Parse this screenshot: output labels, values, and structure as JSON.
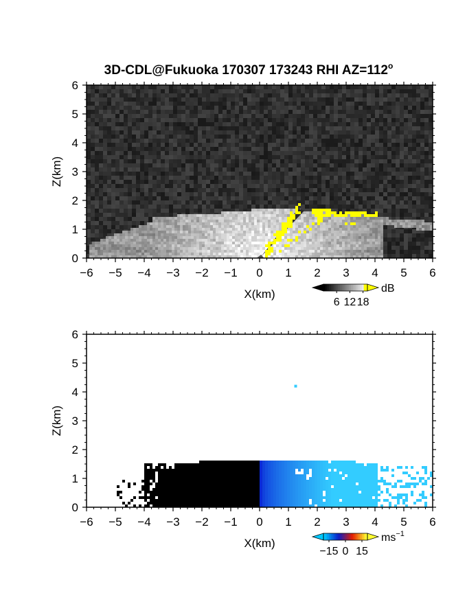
{
  "title": "3D-CDL@Fukuoka 170307 173243 RHI AZ=112",
  "title_superscript": "o",
  "chart_data": [
    {
      "type": "heatmap",
      "panel": "reflectivity",
      "xlabel": "X(km)",
      "ylabel": "Z(km)",
      "xlim": [
        -6,
        6
      ],
      "ylim": [
        0,
        6
      ],
      "xticks": [
        "-6",
        "-5",
        "-4",
        "-3",
        "-2",
        "-1",
        "0",
        "1",
        "2",
        "3",
        "4",
        "5",
        "6"
      ],
      "yticks": [
        "0",
        "1",
        "2",
        "3",
        "4",
        "5",
        "6"
      ],
      "colorbar": {
        "unit": "dB",
        "ticks": [
          "6",
          "12",
          "18"
        ],
        "range": [
          0,
          20
        ],
        "colors": [
          "#000000",
          "#ffffff",
          "#ffff00"
        ]
      },
      "colors": {
        "background": "#2e2e2e",
        "echo_low": "#b8b8b8",
        "echo_high": "#ffffff",
        "strong": "#ffff00"
      }
    },
    {
      "type": "heatmap",
      "panel": "doppler_velocity",
      "xlabel": "X(km)",
      "ylabel": "Z(km)",
      "xlim": [
        -6,
        6
      ],
      "ylim": [
        0,
        6
      ],
      "xticks": [
        "-6",
        "-5",
        "-4",
        "-3",
        "-2",
        "-1",
        "0",
        "1",
        "2",
        "3",
        "4",
        "5",
        "6"
      ],
      "yticks": [
        "0",
        "1",
        "2",
        "3",
        "4",
        "5",
        "6"
      ],
      "colorbar": {
        "unit": "ms",
        "unit_superscript": "-1",
        "ticks": [
          "-15",
          "0",
          "15"
        ],
        "range": [
          -20,
          20
        ],
        "colors": [
          "#00c8ff",
          "#0a1ec8",
          "#e61e00",
          "#ffff32"
        ]
      },
      "colors": {
        "positive_far": "#ffee33",
        "positive_near": "#ff3300",
        "negative_near": "#0a2ad8",
        "negative_far": "#33ccff"
      }
    }
  ]
}
